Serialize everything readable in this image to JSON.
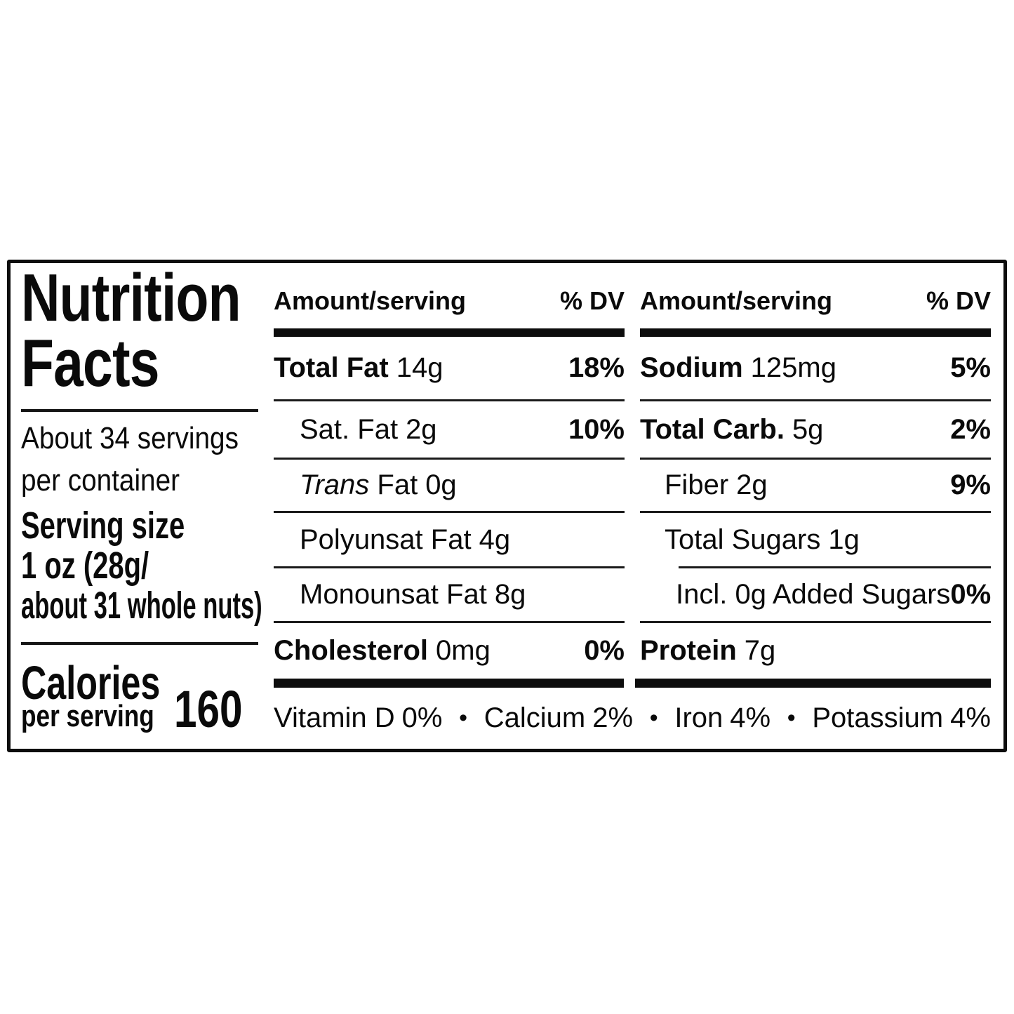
{
  "label": {
    "title_line1": "Nutrition",
    "title_line2": "Facts",
    "servings_line1": "About 34 servings",
    "servings_line2": "per container",
    "serving_size_heading": "Serving size",
    "serving_size_line1": "1 oz (28g/",
    "serving_size_line2": "about 31 whole nuts)",
    "calories_word": "Calories",
    "calories_sub": "per serving",
    "calories_value": "160",
    "col_header": {
      "amount": "Amount/serving",
      "dv": "% DV"
    },
    "mid_rows": [
      {
        "name": "Total Fat",
        "value": "14g",
        "dv": "18%"
      },
      {
        "name": "Sat. Fat",
        "value": "2g",
        "dv": "10%"
      },
      {
        "italic": "Trans",
        "name": " Fat",
        "value": "0g",
        "dv": ""
      },
      {
        "name": "Polyunsat Fat",
        "value": "4g",
        "dv": ""
      },
      {
        "name": "Monounsat Fat",
        "value": "8g",
        "dv": ""
      },
      {
        "name": "Cholesterol",
        "value": "0mg",
        "dv": "0%"
      }
    ],
    "right_rows": [
      {
        "name": "Sodium",
        "value": "125mg",
        "dv": "5%"
      },
      {
        "name": "Total Carb.",
        "value": "5g",
        "dv": "2%"
      },
      {
        "name": "Fiber",
        "value": "2g",
        "dv": "9%"
      },
      {
        "name": "Total Sugars",
        "value": "1g",
        "dv": ""
      },
      {
        "name": "Incl. 0g Added Sugars",
        "value": "",
        "dv": "0%"
      },
      {
        "name": "Protein",
        "value": "7g",
        "dv": ""
      }
    ],
    "micros": [
      {
        "name": "Vitamin D",
        "dv": "0%"
      },
      {
        "name": "Calcium",
        "dv": "2%"
      },
      {
        "name": "Iron",
        "dv": "4%"
      },
      {
        "name": "Potassium",
        "dv": "4%"
      }
    ],
    "bullet": "•"
  },
  "colors": {
    "ink": "#0a0a0a",
    "background": "#ffffff"
  }
}
